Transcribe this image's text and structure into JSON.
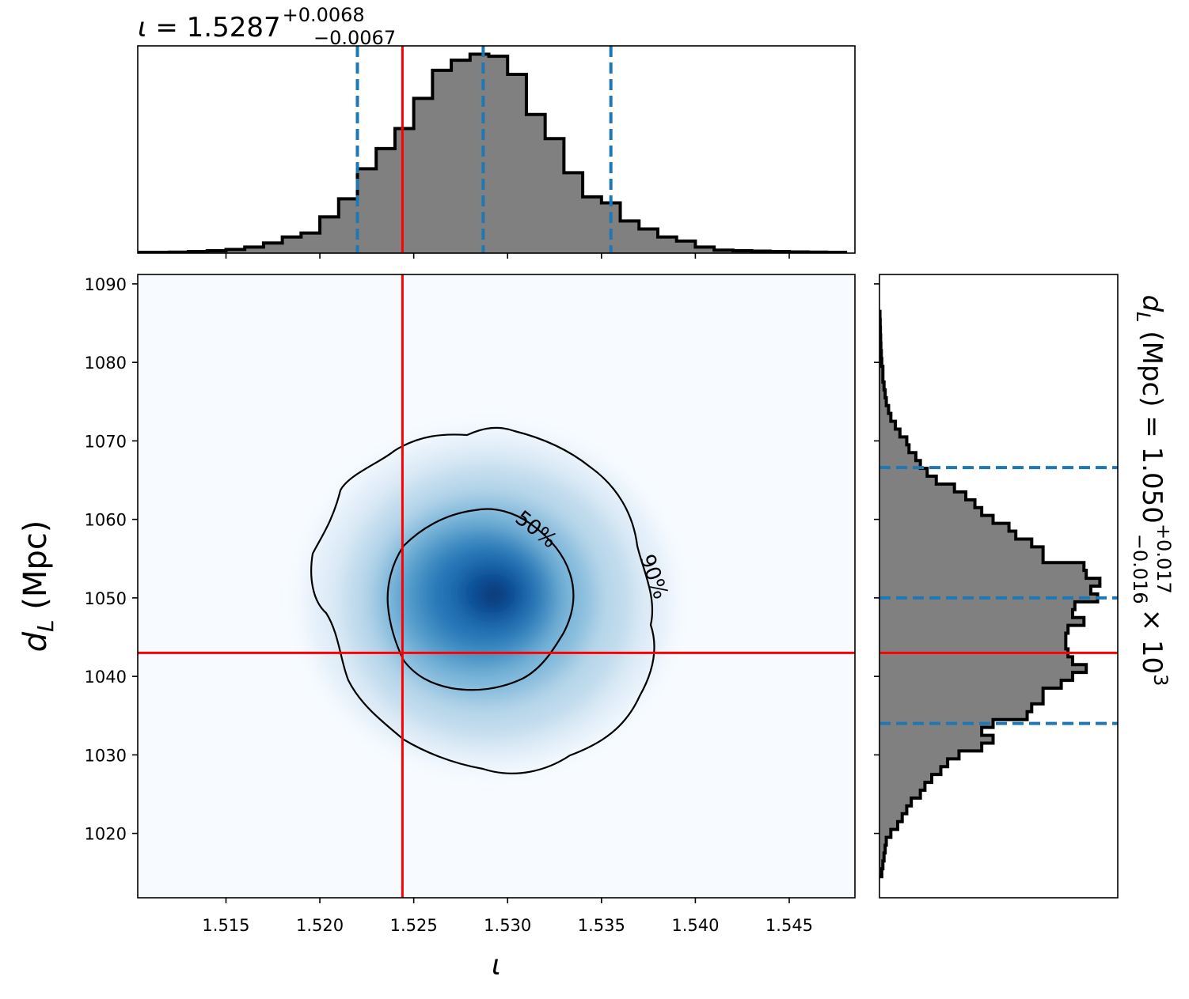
{
  "chart_data": [
    {
      "panel": "top-marginal",
      "type": "histogram",
      "title": {
        "symbol": "ι",
        "value": "1.5287",
        "plus": "+0.0068",
        "minus": "−0.0067"
      },
      "x": [
        1.5105,
        1.5115,
        1.5125,
        1.5135,
        1.5145,
        1.5155,
        1.5165,
        1.5175,
        1.5185,
        1.5195,
        1.5205,
        1.5215,
        1.5225,
        1.5235,
        1.5245,
        1.5255,
        1.5265,
        1.5275,
        1.5285,
        1.5295,
        1.5305,
        1.5315,
        1.5325,
        1.5335,
        1.5345,
        1.5355,
        1.5365,
        1.5375,
        1.5385,
        1.5395,
        1.5405,
        1.5415,
        1.5425,
        1.5435,
        1.5445,
        1.5455,
        1.5465,
        1.5475
      ],
      "values": [
        0.004,
        0.004,
        0.005,
        0.008,
        0.012,
        0.018,
        0.03,
        0.05,
        0.08,
        0.1,
        0.18,
        0.27,
        0.42,
        0.52,
        0.62,
        0.77,
        0.91,
        0.96,
        0.99,
        0.98,
        0.89,
        0.69,
        0.57,
        0.4,
        0.28,
        0.25,
        0.16,
        0.12,
        0.08,
        0.06,
        0.03,
        0.015,
        0.012,
        0.01,
        0.008,
        0.006,
        0.005,
        0.004
      ],
      "bin_width": 0.001,
      "xlim": [
        1.5103,
        1.5485
      ],
      "fill_color": "#808080",
      "edge_color": "#000000",
      "quantile_lines": [
        1.522,
        1.5287,
        1.5355
      ],
      "quantile_color": "#1f77b4",
      "truth": 1.5244,
      "truth_color": "#ff0000"
    },
    {
      "panel": "joint",
      "type": "heatmap",
      "xlabel": "ι",
      "ylabel_symbol": "d",
      "ylabel_sub": "L",
      "ylabel_unit": "(Mpc)",
      "xlim": [
        1.5103,
        1.5485
      ],
      "ylim": [
        1011.8,
        1091.2
      ],
      "xticks": [
        "1.515",
        "1.520",
        "1.525",
        "1.530",
        "1.535",
        "1.540",
        "1.545"
      ],
      "yticks": [
        "1020",
        "1030",
        "1040",
        "1050",
        "1060",
        "1070",
        "1080",
        "1090"
      ],
      "density_center": [
        1.5292,
        1050
      ],
      "colormap": "Blues",
      "contour_labels": [
        "50%",
        "90%"
      ],
      "truth": [
        1.5244,
        1043
      ],
      "truth_color": "#ff0000"
    },
    {
      "panel": "right-marginal",
      "type": "histogram",
      "orientation": "horizontal",
      "title": {
        "symbol": "d",
        "sub": "L",
        "unit": "(Mpc)",
        "value": "1.050",
        "plus": "+0.017",
        "minus": "−0.016",
        "scale": "× 10",
        "exponent": "3"
      },
      "y": [
        1015,
        1016,
        1017,
        1018,
        1019,
        1020,
        1021,
        1022,
        1023,
        1024,
        1025,
        1026,
        1027,
        1028,
        1029,
        1030,
        1031,
        1032,
        1033,
        1034,
        1035,
        1036,
        1037,
        1038,
        1039,
        1040,
        1041,
        1042,
        1043,
        1044,
        1045,
        1046,
        1047,
        1048,
        1049,
        1050,
        1051,
        1052,
        1053,
        1054,
        1055,
        1056,
        1057,
        1058,
        1059,
        1060,
        1061,
        1062,
        1063,
        1064,
        1065,
        1066,
        1067,
        1068,
        1069,
        1070,
        1071,
        1072,
        1073,
        1074,
        1075,
        1076,
        1077,
        1078,
        1079,
        1080,
        1081,
        1082,
        1083,
        1084,
        1085,
        1086
      ],
      "values": [
        0.01,
        0.015,
        0.02,
        0.025,
        0.03,
        0.05,
        0.08,
        0.1,
        0.12,
        0.14,
        0.18,
        0.2,
        0.23,
        0.27,
        0.3,
        0.35,
        0.45,
        0.5,
        0.45,
        0.5,
        0.65,
        0.67,
        0.72,
        0.72,
        0.8,
        0.85,
        0.91,
        0.85,
        0.83,
        0.82,
        0.82,
        0.83,
        0.9,
        0.85,
        0.86,
        0.96,
        0.93,
        0.97,
        0.91,
        0.9,
        0.72,
        0.72,
        0.67,
        0.6,
        0.57,
        0.5,
        0.45,
        0.42,
        0.38,
        0.33,
        0.25,
        0.21,
        0.18,
        0.16,
        0.13,
        0.12,
        0.09,
        0.07,
        0.05,
        0.04,
        0.03,
        0.025,
        0.02,
        0.015,
        0.015,
        0.01,
        0.008,
        0.006,
        0.005,
        0.004,
        0.003,
        0.002
      ],
      "bin_width": 1,
      "ylim": [
        1011.8,
        1091.2
      ],
      "fill_color": "#808080",
      "edge_color": "#000000",
      "quantile_lines": [
        1034,
        1050,
        1066.6
      ],
      "quantile_color": "#1f77b4",
      "truth": 1043,
      "truth_color": "#ff0000"
    }
  ]
}
